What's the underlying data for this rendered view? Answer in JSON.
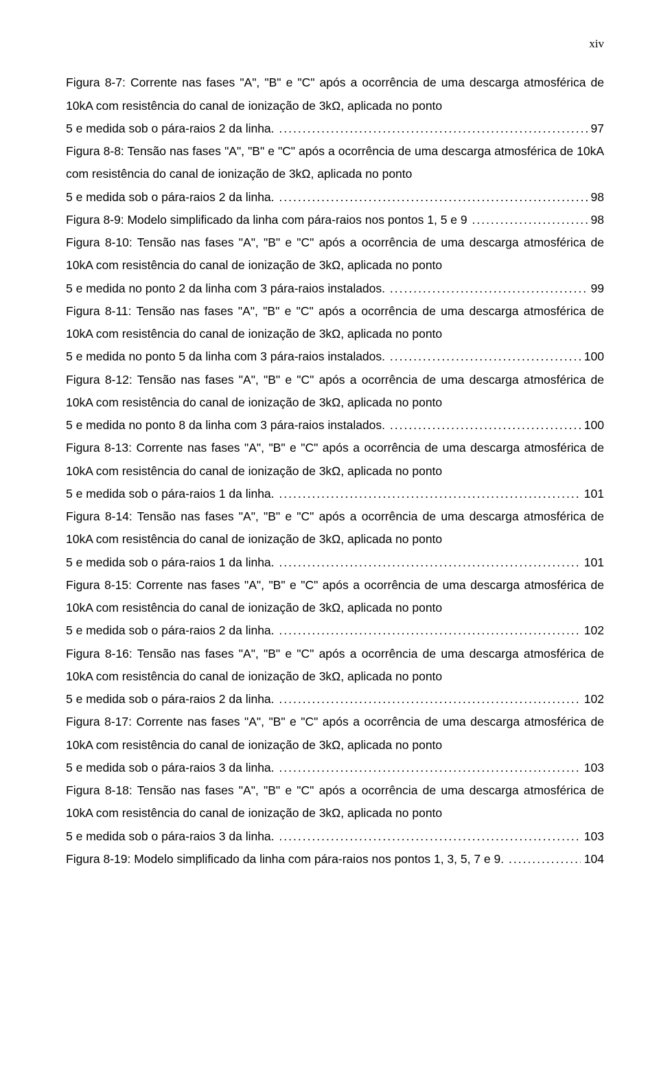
{
  "header": {
    "roman_page": "xiv"
  },
  "entries": [
    {
      "lines_before": [
        "Figura 8-7: Corrente nas fases \"A\", \"B\" e \"C\" após a ocorrência de uma descarga atmosférica de 10kA com resistência do canal de ionização de 3kΩ, aplicada no ponto"
      ],
      "last_line": "5 e medida sob o pára-raios 2 da linha.",
      "page": "97"
    },
    {
      "lines_before": [
        "Figura 8-8: Tensão nas fases \"A\", \"B\" e \"C\" após a ocorrência de uma descarga atmosférica de 10kA com resistência do canal de ionização de 3kΩ, aplicada no ponto"
      ],
      "last_line": "5 e medida sob o pára-raios 2 da linha.",
      "page": "98"
    },
    {
      "lines_before": [],
      "last_line": "Figura 8-9: Modelo simplificado da linha com pára-raios nos pontos 1, 5 e 9",
      "page": "98"
    },
    {
      "lines_before": [
        "Figura 8-10: Tensão nas fases \"A\", \"B\" e \"C\" após a ocorrência de uma descarga atmosférica de 10kA com resistência do canal de ionização de 3kΩ, aplicada no ponto"
      ],
      "last_line": "5 e medida no ponto 2 da linha com 3 pára-raios instalados.",
      "page": "99"
    },
    {
      "lines_before": [
        "Figura 8-11: Tensão nas fases \"A\", \"B\" e \"C\" após a ocorrência de uma descarga atmosférica de 10kA com resistência do canal de ionização de 3kΩ, aplicada no ponto"
      ],
      "last_line": "5 e medida no ponto 5 da linha com 3 pára-raios instalados.",
      "page": "100"
    },
    {
      "lines_before": [
        "Figura 8-12: Tensão nas fases \"A\", \"B\" e \"C\" após a ocorrência de uma descarga atmosférica de 10kA com resistência do canal de ionização de 3kΩ, aplicada no ponto"
      ],
      "last_line": "5 e medida no ponto 8 da linha com 3 pára-raios instalados.",
      "page": "100"
    },
    {
      "lines_before": [
        "Figura 8-13: Corrente nas fases \"A\", \"B\" e \"C\" após a ocorrência de uma descarga atmosférica de 10kA com resistência do canal de ionização de 3kΩ, aplicada no ponto"
      ],
      "last_line": "5 e medida sob o pára-raios 1 da linha.",
      "page": "101"
    },
    {
      "lines_before": [
        "Figura 8-14: Tensão nas fases \"A\", \"B\" e \"C\" após a ocorrência de uma descarga atmosférica de 10kA com resistência do canal de ionização de 3kΩ, aplicada no ponto"
      ],
      "last_line": "5 e medida sob o pára-raios 1 da linha.",
      "page": "101"
    },
    {
      "lines_before": [
        "Figura 8-15: Corrente nas fases \"A\", \"B\" e \"C\" após a ocorrência de uma descarga atmosférica de 10kA com resistência do canal de ionização de 3kΩ, aplicada no ponto"
      ],
      "last_line": "5 e medida sob o pára-raios 2 da linha.",
      "page": "102"
    },
    {
      "lines_before": [
        "Figura 8-16: Tensão nas fases \"A\", \"B\" e \"C\" após a ocorrência de uma descarga atmosférica de 10kA com resistência do canal de ionização de 3kΩ, aplicada no ponto"
      ],
      "last_line": "5 e medida sob o pára-raios 2 da linha.",
      "page": "102"
    },
    {
      "lines_before": [
        "Figura 8-17: Corrente nas fases \"A\", \"B\" e \"C\" após a ocorrência de uma descarga atmosférica de 10kA com resistência do canal de ionização de 3kΩ, aplicada no ponto"
      ],
      "last_line": "5 e medida sob o pára-raios 3 da linha.",
      "page": "103"
    },
    {
      "lines_before": [
        "Figura 8-18: Tensão nas fases \"A\", \"B\" e \"C\" após a ocorrência de uma descarga atmosférica de 10kA com resistência do canal de ionização de 3kΩ, aplicada no ponto"
      ],
      "last_line": "5 e medida sob o pára-raios 3 da linha.",
      "page": "103"
    },
    {
      "lines_before": [],
      "last_line": "Figura 8-19: Modelo simplificado da linha com pára-raios nos pontos 1, 3, 5, 7 e 9.",
      "page": "104"
    }
  ]
}
